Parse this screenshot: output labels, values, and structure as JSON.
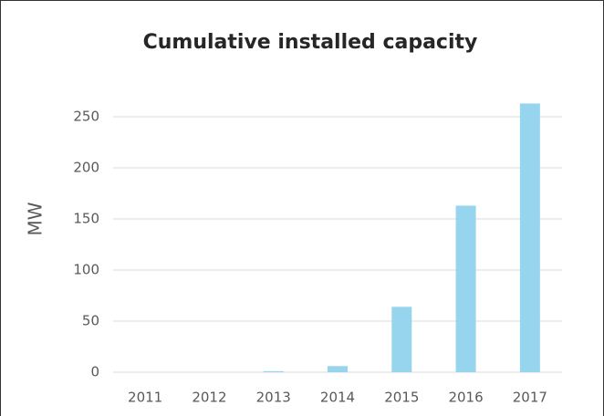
{
  "chart_data": {
    "type": "bar",
    "title": "Cumulative installed capacity",
    "y_label": "MW",
    "categories": [
      "2011",
      "2012",
      "2013",
      "2014",
      "2015",
      "2016",
      "2017"
    ],
    "values": [
      0,
      0,
      1,
      6,
      64,
      163,
      263
    ],
    "color": "#97d5ef",
    "ylim": [
      0,
      280
    ],
    "yticks": [
      0,
      50,
      100,
      150,
      200,
      250
    ],
    "grid": true
  }
}
